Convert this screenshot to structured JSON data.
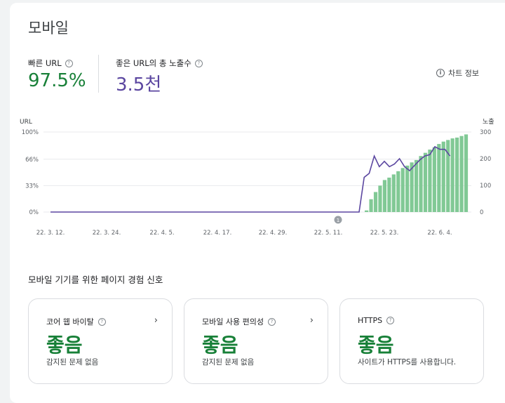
{
  "title": "모바일",
  "metrics": {
    "fast_url": {
      "label": "빠른 URL",
      "value": "97.5%"
    },
    "impressions": {
      "label": "좋은 URL의 총 노출수",
      "value": "3.5천"
    }
  },
  "chart_info_label": "차트 정보",
  "chart_data": {
    "type": "bar",
    "y_left_title": "URL",
    "y_right_title": "노출",
    "y_left_ticks": [
      "100%",
      "66%",
      "33%",
      "0%"
    ],
    "y_right_ticks": [
      "300",
      "200",
      "100",
      "0"
    ],
    "x_ticks": [
      "22. 3. 12.",
      "22. 3. 24.",
      "22. 4. 5.",
      "22. 4. 17.",
      "22. 4. 29.",
      "22. 5. 11.",
      "22. 5. 23.",
      "22. 6. 4."
    ],
    "annotation_label": "1",
    "series": [
      {
        "values": [
          2,
          16,
          25,
          33,
          40,
          43,
          47,
          51,
          55,
          58,
          62,
          65,
          70,
          74,
          78,
          81,
          85,
          88,
          90,
          92,
          93,
          95,
          97
        ]
      },
      {
        "values": [
          0,
          130,
          145,
          210,
          170,
          190,
          170,
          180,
          200,
          170,
          155,
          175,
          195,
          210,
          215,
          245,
          235,
          235,
          210
        ]
      }
    ],
    "ylim_left": [
      0,
      100
    ],
    "ylim_right": [
      0,
      300
    ],
    "colors": {
      "bars": "#81c995",
      "line": "#5b46a0",
      "grid": "#e8eaed"
    }
  },
  "section_title": "모바일 기기를 위한 페이지 경험 신호",
  "tiles": [
    {
      "title": "코어 웹 바이탈",
      "status": "좋음",
      "desc": "감지된 문제 없음",
      "has_chevron": true
    },
    {
      "title": "모바일 사용 편의성",
      "status": "좋음",
      "desc": "감지된 문제 없음",
      "has_chevron": true
    },
    {
      "title": "HTTPS",
      "status": "좋음",
      "desc": "사이트가 HTTPS를 사용합니다.",
      "has_chevron": false
    }
  ],
  "colors": {
    "green": "#188038",
    "purple": "#5b46a0"
  },
  "icons": {
    "help": "help-circle-icon",
    "info": "info-icon",
    "chevron": "chevron-right-icon"
  }
}
